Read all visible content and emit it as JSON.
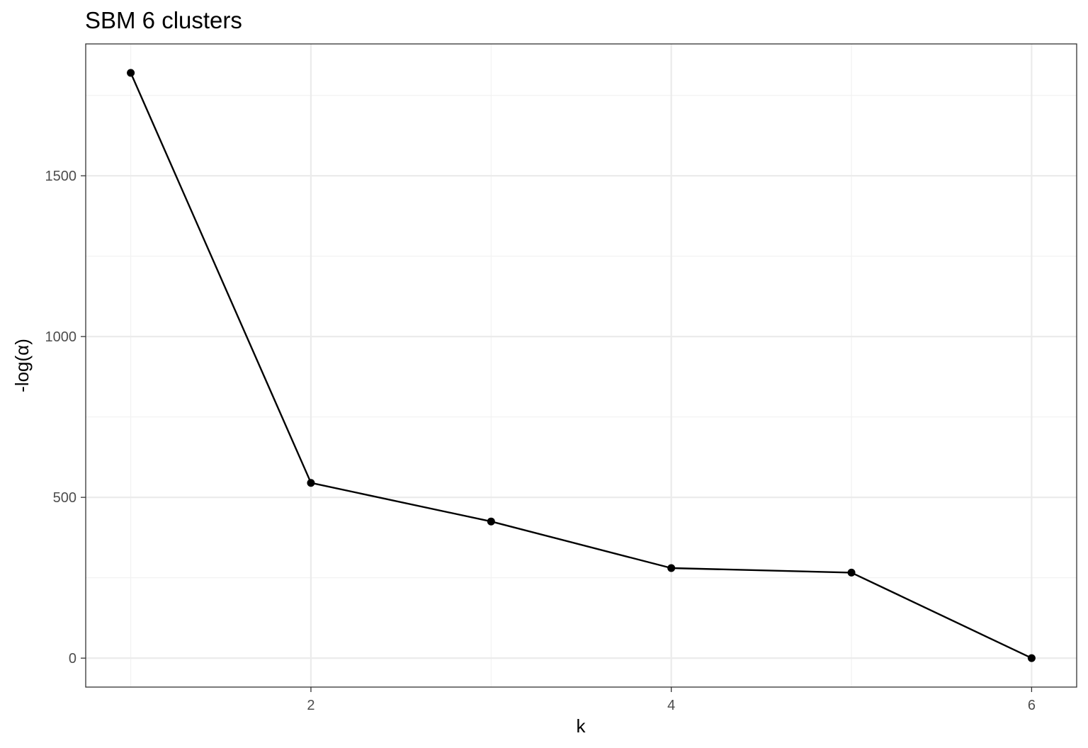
{
  "chart_data": {
    "type": "line",
    "title": "SBM 6 clusters",
    "xlabel": "k",
    "ylabel": "-log(α)",
    "x": [
      1,
      2,
      3,
      4,
      5,
      6
    ],
    "series": [
      {
        "values": [
          1820,
          545,
          425,
          280,
          266,
          0
        ]
      }
    ],
    "xlim": [
      0.75,
      6.25
    ],
    "ylim": [
      -90,
      1910
    ],
    "x_major_ticks": [
      2,
      4,
      6
    ],
    "x_minor_ticks": [
      1,
      3,
      5
    ],
    "y_major_ticks": [
      0,
      500,
      1000,
      1500
    ],
    "y_minor_ticks": [
      250,
      750,
      1250,
      1750
    ],
    "x_tick_labels": [
      "2",
      "4",
      "6"
    ],
    "y_tick_labels": [
      "0",
      "500",
      "1000",
      "1500"
    ],
    "grid": true,
    "legend": "none",
    "colors": {
      "line": "#000000",
      "point": "#000000",
      "grid_major": "#ebebeb",
      "grid_minor": "#f2f2f2",
      "panel_border": "#333333",
      "tick_label": "#4d4d4d"
    }
  }
}
